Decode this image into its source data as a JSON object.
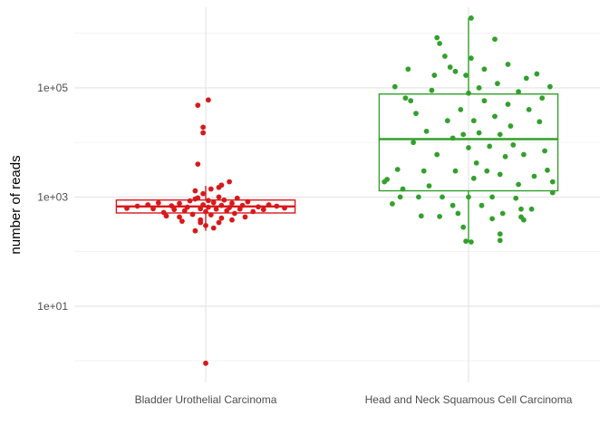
{
  "chart_data": {
    "type": "box-jitter",
    "ylabel": "number of reads",
    "xlabel": "",
    "y_scale": "log10",
    "ylim": [
      0.4,
      3000000
    ],
    "y_ticks": [
      {
        "value": 10,
        "label": "1e+01"
      },
      {
        "value": 1000,
        "label": "1e+03"
      },
      {
        "value": 100000,
        "label": "1e+05"
      }
    ],
    "grid": true,
    "legend": "none",
    "categories": [
      "Bladder Urothelial Carcinoma",
      "Head and Neck Squamous Cell Carcinoma"
    ],
    "series": [
      {
        "category": "Bladder Urothelial Carcinoma",
        "color": "#d7191c",
        "box": {
          "q1": 510,
          "median": 670,
          "q3": 880,
          "whisker_low": 240,
          "whisker_high": 1600
        },
        "points": [
          {
            "jitter": -0.3,
            "value": 620
          },
          {
            "jitter": -0.26,
            "value": 680
          },
          {
            "jitter": -0.22,
            "value": 720
          },
          {
            "jitter": -0.2,
            "value": 610
          },
          {
            "jitter": -0.18,
            "value": 780
          },
          {
            "jitter": -0.16,
            "value": 520
          },
          {
            "jitter": -0.15,
            "value": 450
          },
          {
            "jitter": -0.13,
            "value": 690
          },
          {
            "jitter": -0.12,
            "value": 590
          },
          {
            "jitter": -0.1,
            "value": 760
          },
          {
            "jitter": -0.1,
            "value": 430
          },
          {
            "jitter": -0.08,
            "value": 560
          },
          {
            "jitter": -0.07,
            "value": 650
          },
          {
            "jitter": -0.06,
            "value": 850
          },
          {
            "jitter": -0.05,
            "value": 480
          },
          {
            "jitter": -0.04,
            "value": 920
          },
          {
            "jitter": -0.03,
            "value": 960
          },
          {
            "jitter": -0.02,
            "value": 610
          },
          {
            "jitter": -0.02,
            "value": 380
          },
          {
            "jitter": -0.01,
            "value": 720
          },
          {
            "jitter": 0.0,
            "value": 540
          },
          {
            "jitter": 0.01,
            "value": 860
          },
          {
            "jitter": 0.01,
            "value": 650
          },
          {
            "jitter": 0.02,
            "value": 470
          },
          {
            "jitter": 0.03,
            "value": 790
          },
          {
            "jitter": 0.04,
            "value": 600
          },
          {
            "jitter": 0.05,
            "value": 1000
          },
          {
            "jitter": 0.06,
            "value": 700
          },
          {
            "jitter": 0.06,
            "value": 410
          },
          {
            "jitter": 0.07,
            "value": 880
          },
          {
            "jitter": 0.08,
            "value": 560
          },
          {
            "jitter": 0.09,
            "value": 640
          },
          {
            "jitter": 0.1,
            "value": 770
          },
          {
            "jitter": 0.11,
            "value": 500
          },
          {
            "jitter": 0.12,
            "value": 950
          },
          {
            "jitter": 0.13,
            "value": 600
          },
          {
            "jitter": 0.14,
            "value": 700
          },
          {
            "jitter": 0.15,
            "value": 430
          },
          {
            "jitter": 0.16,
            "value": 820
          },
          {
            "jitter": 0.18,
            "value": 540
          },
          {
            "jitter": 0.2,
            "value": 660
          },
          {
            "jitter": 0.22,
            "value": 590
          },
          {
            "jitter": 0.24,
            "value": 720
          },
          {
            "jitter": 0.27,
            "value": 680
          },
          {
            "jitter": 0.3,
            "value": 630
          },
          {
            "jitter": -0.04,
            "value": 1300
          },
          {
            "jitter": -0.01,
            "value": 1150
          },
          {
            "jitter": 0.02,
            "value": 1400
          },
          {
            "jitter": 0.06,
            "value": 1650
          },
          {
            "jitter": 0.09,
            "value": 1900
          },
          {
            "jitter": 0.05,
            "value": 1500
          },
          {
            "jitter": -0.02,
            "value": 340
          },
          {
            "jitter": 0.0,
            "value": 300
          },
          {
            "jitter": 0.03,
            "value": 270
          },
          {
            "jitter": 0.05,
            "value": 340
          },
          {
            "jitter": 0.1,
            "value": 380
          },
          {
            "jitter": -0.09,
            "value": 360
          },
          {
            "jitter": -0.04,
            "value": 240
          },
          {
            "jitter": -0.03,
            "value": 4000
          },
          {
            "jitter": -0.01,
            "value": 15000
          },
          {
            "jitter": -0.01,
            "value": 19000
          },
          {
            "jitter": -0.03,
            "value": 48000
          },
          {
            "jitter": 0.01,
            "value": 60000
          },
          {
            "jitter": 0.0,
            "value": 0.9
          }
        ]
      },
      {
        "category": "Head and Neck Squamous Cell Carcinoma",
        "color": "#33a02c",
        "box": {
          "q1": 1300,
          "median": 11500,
          "q3": 77000,
          "whisker_low": 150,
          "whisker_high": 1900000
        },
        "points": [
          {
            "jitter": -0.32,
            "value": 1900
          },
          {
            "jitter": -0.31,
            "value": 2100
          },
          {
            "jitter": 0.32,
            "value": 1900
          },
          {
            "jitter": -0.29,
            "value": 750
          },
          {
            "jitter": -0.26,
            "value": 1000
          },
          {
            "jitter": -0.28,
            "value": 105000
          },
          {
            "jitter": -0.24,
            "value": 65000
          },
          {
            "jitter": -0.22,
            "value": 58000
          },
          {
            "jitter": -0.21,
            "value": 10000
          },
          {
            "jitter": -0.2,
            "value": 34000
          },
          {
            "jitter": -0.19,
            "value": 1000
          },
          {
            "jitter": -0.18,
            "value": 450
          },
          {
            "jitter": -0.17,
            "value": 3000
          },
          {
            "jitter": -0.16,
            "value": 16000
          },
          {
            "jitter": -0.15,
            "value": 1600
          },
          {
            "jitter": -0.14,
            "value": 90000
          },
          {
            "jitter": -0.13,
            "value": 170000
          },
          {
            "jitter": -0.12,
            "value": 6000
          },
          {
            "jitter": -0.11,
            "value": 440
          },
          {
            "jitter": -0.1,
            "value": 1000
          },
          {
            "jitter": -0.09,
            "value": 380000
          },
          {
            "jitter": -0.08,
            "value": 25000
          },
          {
            "jitter": -0.07,
            "value": 240000
          },
          {
            "jitter": -0.06,
            "value": 12000
          },
          {
            "jitter": -0.05,
            "value": 3000
          },
          {
            "jitter": -0.05,
            "value": 200000
          },
          {
            "jitter": -0.04,
            "value": 500
          },
          {
            "jitter": -0.03,
            "value": 40000
          },
          {
            "jitter": -0.02,
            "value": 280
          },
          {
            "jitter": -0.02,
            "value": 14000
          },
          {
            "jitter": -0.01,
            "value": 170000
          },
          {
            "jitter": 0.0,
            "value": 8000
          },
          {
            "jitter": 0.0,
            "value": 80000
          },
          {
            "jitter": 0.0,
            "value": 1000
          },
          {
            "jitter": 0.01,
            "value": 350000
          },
          {
            "jitter": 0.02,
            "value": 25000
          },
          {
            "jitter": 0.02,
            "value": 2200
          },
          {
            "jitter": 0.03,
            "value": 4200
          },
          {
            "jitter": 0.04,
            "value": 100000
          },
          {
            "jitter": 0.04,
            "value": 15000
          },
          {
            "jitter": 0.05,
            "value": 700
          },
          {
            "jitter": 0.06,
            "value": 220000
          },
          {
            "jitter": 0.06,
            "value": 58000
          },
          {
            "jitter": 0.07,
            "value": 3000
          },
          {
            "jitter": 0.08,
            "value": 8500
          },
          {
            "jitter": 0.09,
            "value": 1000
          },
          {
            "jitter": 0.1,
            "value": 30000
          },
          {
            "jitter": 0.11,
            "value": 120000
          },
          {
            "jitter": 0.12,
            "value": 2600
          },
          {
            "jitter": 0.12,
            "value": 14000
          },
          {
            "jitter": 0.13,
            "value": 500
          },
          {
            "jitter": 0.14,
            "value": 5500
          },
          {
            "jitter": 0.15,
            "value": 270000
          },
          {
            "jitter": 0.15,
            "value": 50000
          },
          {
            "jitter": 0.16,
            "value": 20000
          },
          {
            "jitter": 0.17,
            "value": 9000
          },
          {
            "jitter": 0.18,
            "value": 950
          },
          {
            "jitter": 0.19,
            "value": 1700
          },
          {
            "jitter": 0.19,
            "value": 85000
          },
          {
            "jitter": 0.2,
            "value": 600
          },
          {
            "jitter": 0.21,
            "value": 6000
          },
          {
            "jitter": 0.22,
            "value": 150000
          },
          {
            "jitter": 0.23,
            "value": 40000
          },
          {
            "jitter": 0.24,
            "value": 600
          },
          {
            "jitter": 0.25,
            "value": 2400
          },
          {
            "jitter": 0.26,
            "value": 180000
          },
          {
            "jitter": 0.27,
            "value": 24000
          },
          {
            "jitter": 0.28,
            "value": 65000
          },
          {
            "jitter": 0.29,
            "value": 7000
          },
          {
            "jitter": 0.3,
            "value": 3100
          },
          {
            "jitter": 0.31,
            "value": 105000
          },
          {
            "jitter": 0.32,
            "value": 1200
          },
          {
            "jitter": -0.27,
            "value": 3200
          },
          {
            "jitter": -0.23,
            "value": 220000
          },
          {
            "jitter": -0.25,
            "value": 1400
          },
          {
            "jitter": -0.12,
            "value": 830000
          },
          {
            "jitter": -0.11,
            "value": 650000
          },
          {
            "jitter": 0.1,
            "value": 780000
          },
          {
            "jitter": 0.01,
            "value": 1900000
          },
          {
            "jitter": 0.01,
            "value": 150
          },
          {
            "jitter": -0.01,
            "value": 155
          },
          {
            "jitter": 0.12,
            "value": 160
          },
          {
            "jitter": 0.12,
            "value": 210
          },
          {
            "jitter": 0.09,
            "value": 400
          },
          {
            "jitter": -0.06,
            "value": 700
          },
          {
            "jitter": 0.2,
            "value": 430
          },
          {
            "jitter": 0.21,
            "value": 380
          }
        ]
      }
    ]
  }
}
